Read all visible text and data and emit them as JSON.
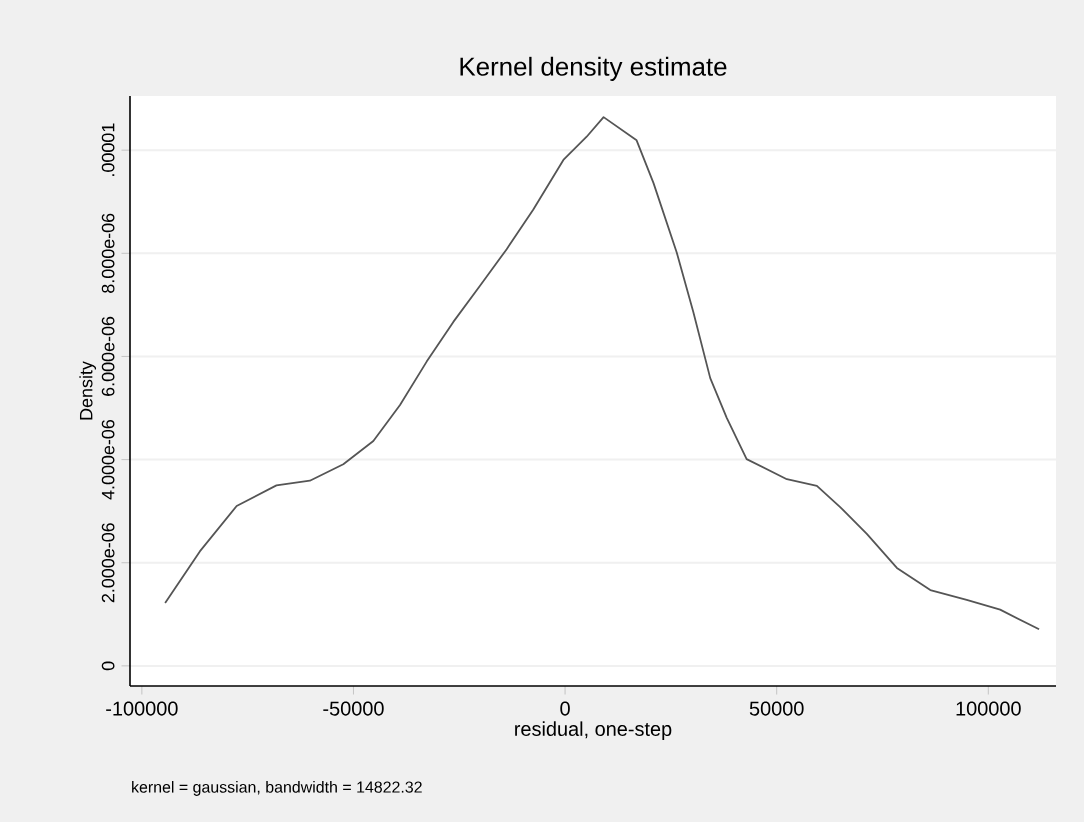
{
  "chart_data": {
    "type": "line",
    "title": "Kernel density estimate",
    "xlabel": "residual, one-step",
    "ylabel": "Density",
    "annotations": [
      "kernel = gaussian, bandwidth = 14822.32"
    ],
    "x": [
      -94500,
      -86300,
      -77600,
      -68200,
      -60300,
      -52400,
      -45300,
      -39000,
      -32700,
      -26400,
      -20100,
      -13800,
      -7500,
      -400,
      5100,
      9100,
      16900,
      20900,
      26400,
      30300,
      34300,
      38200,
      42900,
      52400,
      59500,
      65000,
      71300,
      78400,
      86300,
      94900,
      102800,
      112000
    ],
    "series": [
      {
        "color": "#555555",
        "values": [
          1.22e-06,
          2.22e-06,
          3.1e-06,
          3.5e-06,
          3.59e-06,
          3.91e-06,
          4.36e-06,
          5.06e-06,
          5.9e-06,
          6.67e-06,
          7.37e-06,
          8.08e-06,
          8.85e-06,
          9.81e-06,
          1.026e-05,
          1.064e-05,
          1.019e-05,
          9.36e-06,
          8.01e-06,
          6.86e-06,
          5.58e-06,
          4.81e-06,
          4.01e-06,
          3.62e-06,
          3.49e-06,
          3.08e-06,
          2.56e-06,
          1.9e-06,
          1.47e-06,
          1.28e-06,
          1.09e-06,
          7.1e-07
        ]
      }
    ],
    "xlim": [
      -102800,
      116000
    ],
    "ylim": [
      -3.9e-07,
      1.105e-05
    ],
    "xticks": [
      -100000,
      -50000,
      0,
      50000,
      100000
    ],
    "yticks": [
      0,
      {
        "value": 2e-06,
        "label": "2.000e-06"
      },
      {
        "value": 4e-06,
        "label": "4.000e-06"
      },
      {
        "value": 6e-06,
        "label": "6.000e-06"
      },
      {
        "value": 8e-06,
        "label": "8.000e-06"
      },
      {
        "value": 1e-05,
        "label": ".00001"
      }
    ],
    "grid": "y",
    "marker": "none",
    "line_style": "solid"
  }
}
